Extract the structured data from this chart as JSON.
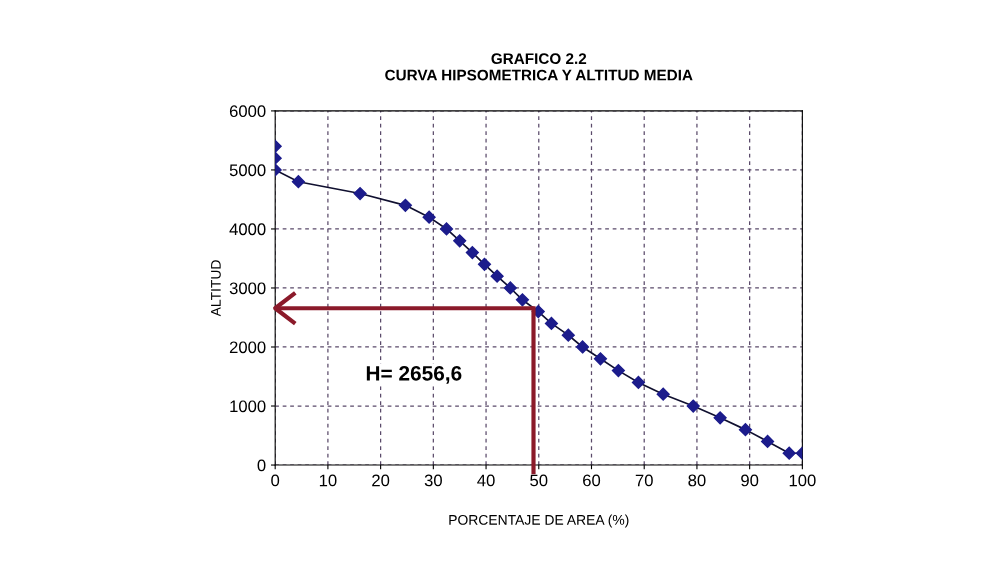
{
  "chart_data": {
    "type": "line",
    "title": "GRAFICO 2.2\nCURVA HIPSOMETRICA Y ALTITUD MEDIA",
    "xlabel": "PORCENTAJE DE AREA (%)",
    "ylabel": "ALTITUD",
    "x": [
      0,
      0,
      0,
      4.4,
      16.1,
      24.7,
      29.2,
      32.5,
      35,
      37.4,
      39.7,
      42.1,
      44.6,
      46.9,
      49.9,
      52.4,
      55.6,
      58.3,
      61.7,
      65.1,
      68.9,
      73.6,
      79.3,
      84.4,
      89.2,
      93.4,
      97.5,
      100
    ],
    "series": [
      {
        "color": "#1c1c8c",
        "values": [
          5400,
          5200,
          5000,
          4800,
          4600,
          4400,
          4200,
          4000,
          3800,
          3600,
          3400,
          3200,
          3000,
          2800,
          2600,
          2400,
          2200,
          2000,
          1800,
          1600,
          1400,
          1200,
          1000,
          800,
          600,
          400,
          200,
          200
        ]
      }
    ],
    "xlim": [
      0,
      100
    ],
    "xticks": [
      0,
      10,
      20,
      30,
      40,
      50,
      60,
      70,
      80,
      90,
      100
    ],
    "ylim": [
      0,
      6000
    ],
    "yticks": [
      0,
      1000,
      2000,
      3000,
      4000,
      5000,
      6000
    ],
    "grid": true,
    "marker": "diamond",
    "line_style": "solid",
    "ref_lines": [
      {
        "axis": "y",
        "value": 2656.6,
        "label": "H= 2656,6",
        "color": "#8b1a2a"
      },
      {
        "axis": "x",
        "value": 49,
        "color": "#8b1a2a"
      }
    ]
  }
}
